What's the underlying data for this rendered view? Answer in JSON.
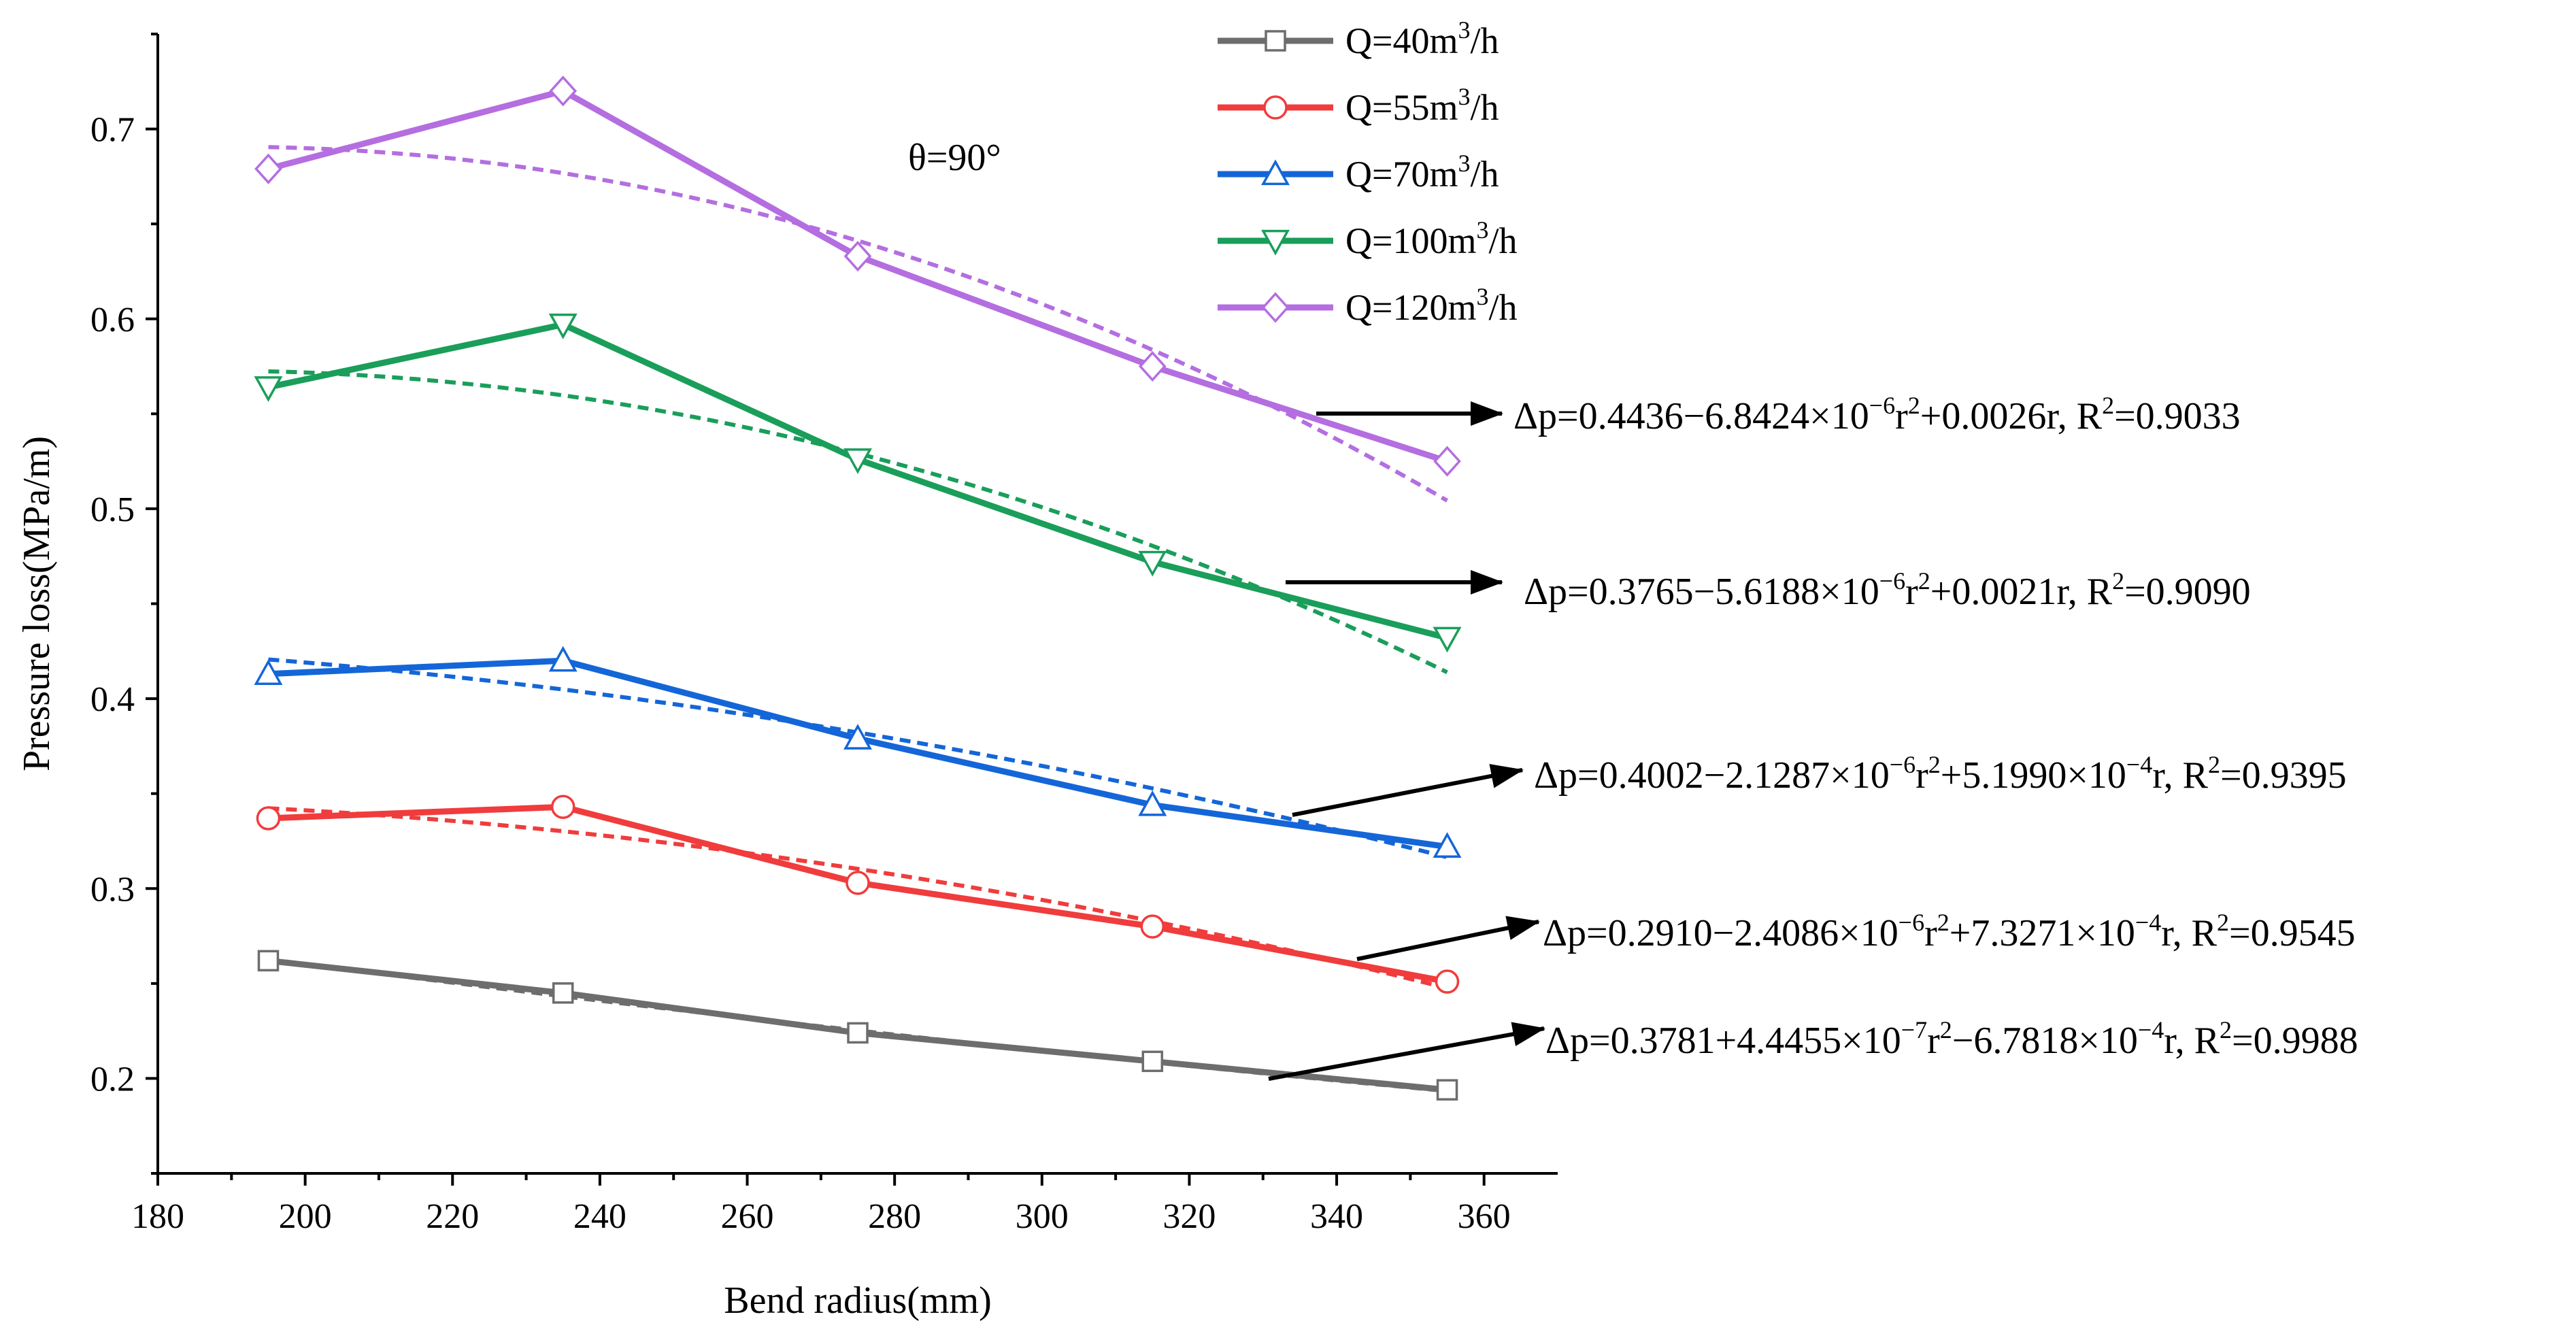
{
  "chart_data": {
    "type": "line",
    "title": "",
    "xlabel": "Bend radius(mm)",
    "ylabel": "Pressure loss(MPa/m)",
    "xlim": [
      180,
      370
    ],
    "ylim": [
      0.15,
      0.75
    ],
    "xticks": [
      180,
      200,
      220,
      240,
      260,
      280,
      300,
      320,
      340,
      360
    ],
    "yticks": [
      0.2,
      0.3,
      0.4,
      0.5,
      0.6,
      0.7
    ],
    "grid": false,
    "legend_position": "top-center",
    "annotation": "θ=90°",
    "x": [
      195,
      235,
      275,
      315,
      355
    ],
    "series": [
      {
        "name": "Q=40m3/h",
        "label_parts": [
          "Q=40m",
          "3",
          "/h"
        ],
        "color": "#6d6d6d",
        "marker": "square",
        "values": [
          0.262,
          0.245,
          0.224,
          0.209,
          0.194
        ],
        "fit": {
          "c": 0.3781,
          "a": 4.4455e-07,
          "b": -0.00067818
        },
        "equation": {
          "parts": [
            "Δp=0.3781+4.4455×10",
            "−7",
            "r",
            "2",
            "−6.7818×10",
            "−4",
            "r, R",
            "2",
            "=0.9988"
          ]
        }
      },
      {
        "name": "Q=55m3/h",
        "label_parts": [
          "Q=55m",
          "3",
          "/h"
        ],
        "color": "#f03c3c",
        "marker": "circle",
        "values": [
          0.337,
          0.343,
          0.303,
          0.28,
          0.251
        ],
        "fit": {
          "c": 0.291,
          "a": -2.4086e-06,
          "b": 0.00073271
        },
        "equation": {
          "parts": [
            "Δp=0.2910−2.4086×10",
            "−6",
            "r",
            "2",
            "+7.3271×10",
            "−4",
            "r, R",
            "2",
            "=0.9545"
          ]
        }
      },
      {
        "name": "Q=70m3/h",
        "label_parts": [
          "Q=70m",
          "3",
          "/h"
        ],
        "color": "#1466d8",
        "marker": "triangle-up",
        "values": [
          0.413,
          0.42,
          0.379,
          0.344,
          0.322
        ],
        "fit": {
          "c": 0.4002,
          "a": -2.1287e-06,
          "b": 0.0005199
        },
        "equation": {
          "parts": [
            "Δp=0.4002−2.1287×10",
            "−6",
            "r",
            "2",
            "+5.1990×10",
            "−4",
            "r, R",
            "2",
            "=0.9395"
          ]
        }
      },
      {
        "name": "Q=100m3/h",
        "label_parts": [
          "Q=100m",
          "3",
          "/h"
        ],
        "color": "#1a9e5a",
        "marker": "triangle-down",
        "values": [
          0.564,
          0.597,
          0.526,
          0.472,
          0.432
        ],
        "fit": {
          "c": 0.3765,
          "a": -5.6188e-06,
          "b": 0.0021
        },
        "equation": {
          "parts": [
            "Δp=0.3765−5.6188×10",
            "−6",
            "r",
            "2",
            "+0.0021r, R",
            "2",
            "=0.9090"
          ]
        }
      },
      {
        "name": "Q=120m3/h",
        "label_parts": [
          "Q=120m",
          "3",
          "/h"
        ],
        "color": "#b46ee0",
        "marker": "diamond",
        "values": [
          0.679,
          0.72,
          0.633,
          0.575,
          0.525
        ],
        "fit": {
          "c": 0.4436,
          "a": -6.8424e-06,
          "b": 0.0026
        },
        "equation": {
          "parts": [
            "Δp=0.4436−6.8424×10",
            "−6",
            "r",
            "2",
            "+0.0026r, R",
            "2",
            "=0.9033"
          ]
        }
      }
    ]
  }
}
